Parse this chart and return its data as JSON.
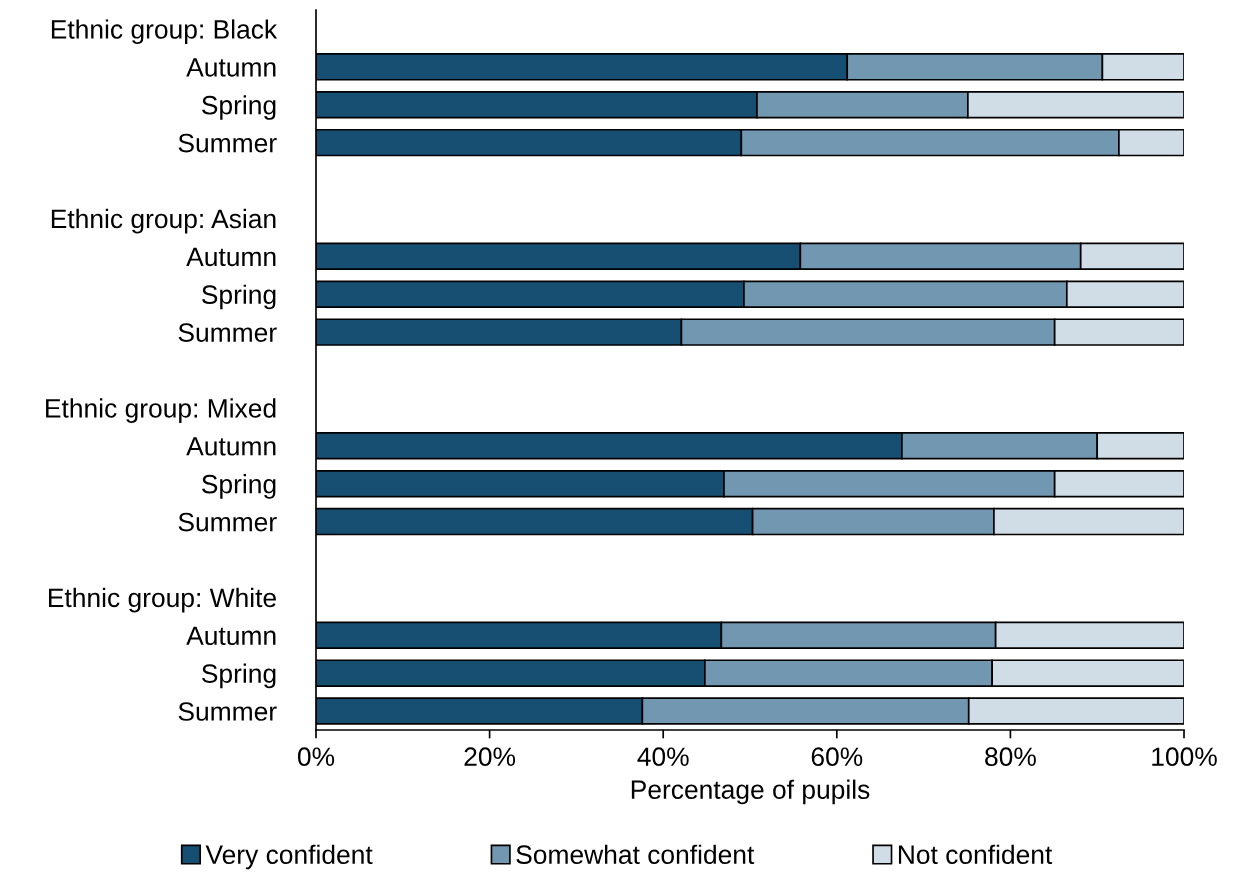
{
  "chart_data": {
    "type": "bar",
    "orientation": "horizontal",
    "stacked": true,
    "categories": [
      "Ethnic group: Black",
      "Autumn",
      "Spring",
      "Summer",
      null,
      "Ethnic group: Asian",
      "Autumn",
      "Spring",
      "Summer",
      null,
      "Ethnic group: Mixed",
      "Autumn",
      "Spring",
      "Summer",
      null,
      "Ethnic group: White",
      "Autumn",
      "Spring",
      "Summer"
    ],
    "series": [
      {
        "name": "Very confident",
        "color": "#174f73",
        "values": [
          null,
          61.2,
          50.8,
          49.0,
          null,
          null,
          55.8,
          49.3,
          42.1,
          null,
          null,
          67.5,
          47.0,
          50.3,
          null,
          null,
          46.7,
          44.8,
          37.6
        ]
      },
      {
        "name": "Somewhat confident",
        "color": "#7197b1",
        "values": [
          null,
          29.4,
          24.3,
          43.5,
          null,
          null,
          32.3,
          37.2,
          43.0,
          null,
          null,
          22.5,
          38.1,
          27.8,
          null,
          null,
          31.6,
          33.1,
          37.6
        ]
      },
      {
        "name": "Not confident",
        "color": "#d0dde6",
        "values": [
          null,
          9.4,
          24.9,
          7.5,
          null,
          null,
          11.9,
          13.5,
          14.9,
          null,
          null,
          10.0,
          14.9,
          21.9,
          null,
          null,
          21.7,
          22.1,
          24.8
        ]
      }
    ],
    "xlabel": "Percentage of pupils",
    "xlim": [
      0,
      100
    ],
    "xticks": [
      {
        "value": 0,
        "label": "0%"
      },
      {
        "value": 20,
        "label": "20%"
      },
      {
        "value": 40,
        "label": "40%"
      },
      {
        "value": 60,
        "label": "60%"
      },
      {
        "value": 80,
        "label": "80%"
      },
      {
        "value": 100,
        "label": "100%"
      }
    ],
    "legend": "bottom",
    "grid": false
  }
}
